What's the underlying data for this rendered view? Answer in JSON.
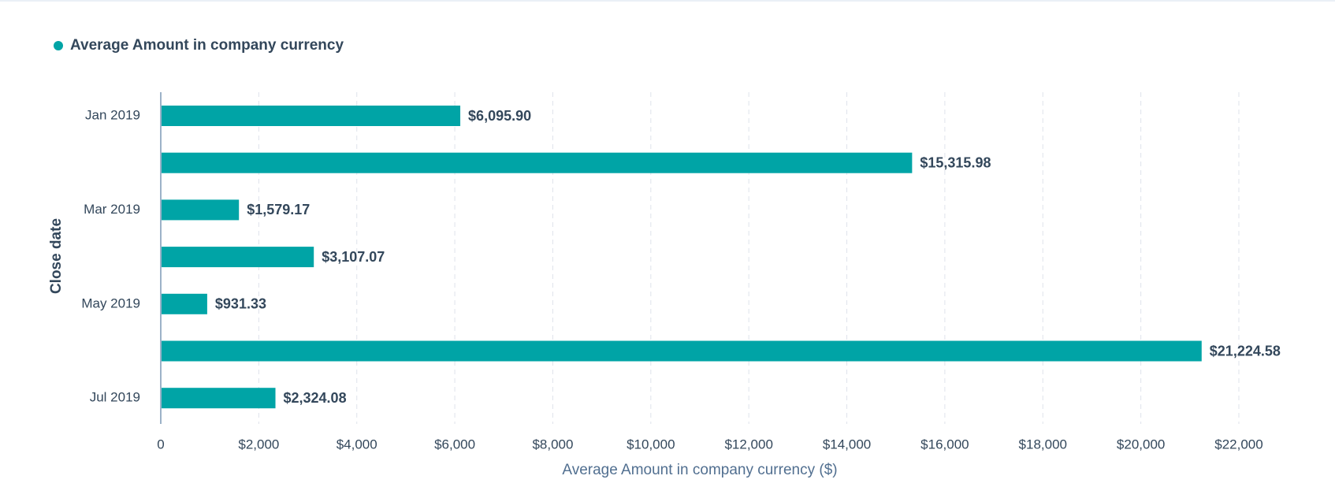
{
  "chart_data": {
    "type": "bar",
    "orientation": "horizontal",
    "legend": "top-left",
    "grid": true,
    "xlabel": "Average Amount in company currency ($)",
    "ylabel": "Close date",
    "categories": [
      "Jan 2019",
      null,
      "Mar 2019",
      null,
      "May 2019",
      null,
      "Jul 2019"
    ],
    "series": [
      {
        "name": "Average Amount in company currency",
        "color": "#00a4a6",
        "values": [
          6095.9,
          15315.98,
          1579.17,
          3107.07,
          931.33,
          21224.58,
          2324.08
        ],
        "value_labels": [
          "$6,095.90",
          "$15,315.98",
          "$1,579.17",
          "$3,107.07",
          "$931.33",
          "$21,224.58",
          "$2,324.08"
        ]
      }
    ],
    "xlim": [
      0,
      22000
    ],
    "xticks": [
      0,
      {
        "value": 2000,
        "label": "$2,000"
      },
      {
        "value": 4000,
        "label": "$4,000"
      },
      {
        "value": 6000,
        "label": "$6,000"
      },
      {
        "value": 8000,
        "label": "$8,000"
      },
      {
        "value": 10000,
        "label": "$10,000"
      },
      {
        "value": 12000,
        "label": "$12,000"
      },
      {
        "value": 14000,
        "label": "$14,000"
      },
      {
        "value": 16000,
        "label": "$16,000"
      },
      {
        "value": 18000,
        "label": "$18,000"
      },
      {
        "value": 20000,
        "label": "$20,000"
      },
      {
        "value": 22000,
        "label": "$22,000"
      }
    ]
  }
}
